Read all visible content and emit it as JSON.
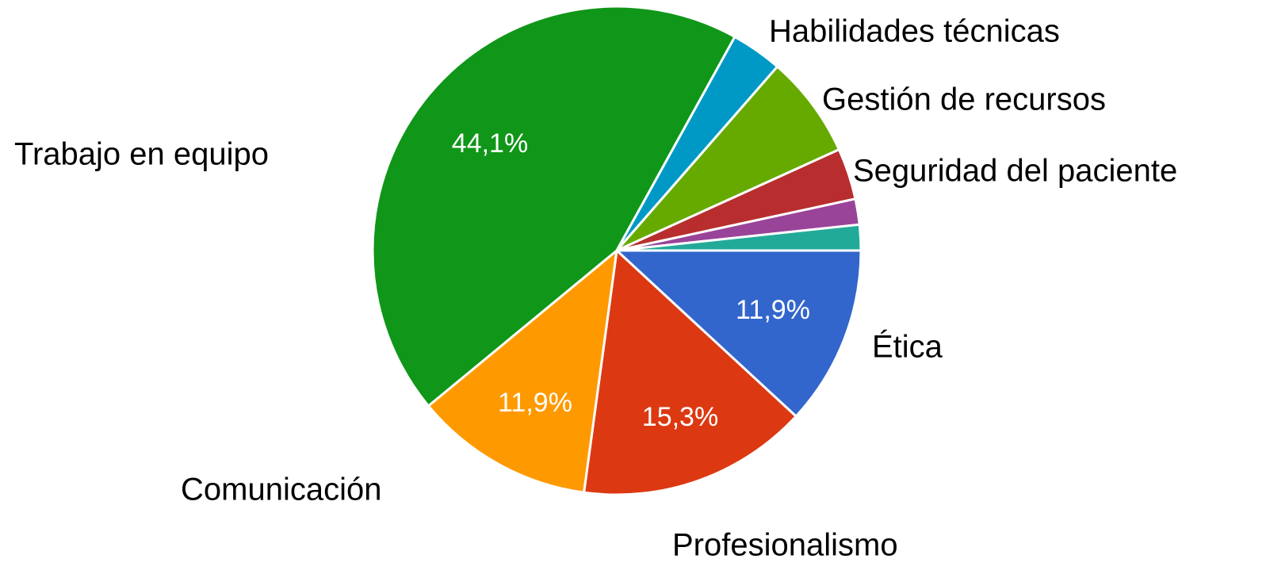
{
  "chart_data": {
    "type": "pie",
    "categories": [
      "Ética",
      "Profesionalismo",
      "Comunicación",
      "Trabajo en equipo",
      "Habilidades técnicas",
      "Gestión de recursos",
      "Seguridad del paciente",
      null,
      null
    ],
    "values": [
      11.9,
      15.3,
      11.9,
      44.1,
      3.4,
      6.8,
      3.4,
      1.7,
      1.7
    ],
    "value_labels": [
      "11,9%",
      "15,3%",
      "11,9%",
      "44,1%",
      null,
      null,
      null,
      null,
      null
    ],
    "colors": [
      "#3366cc",
      "#dc3912",
      "#ff9900",
      "#109618",
      "#0099c6",
      "#66aa00",
      "#b82e2e",
      "#994499",
      "#22aa99"
    ]
  }
}
